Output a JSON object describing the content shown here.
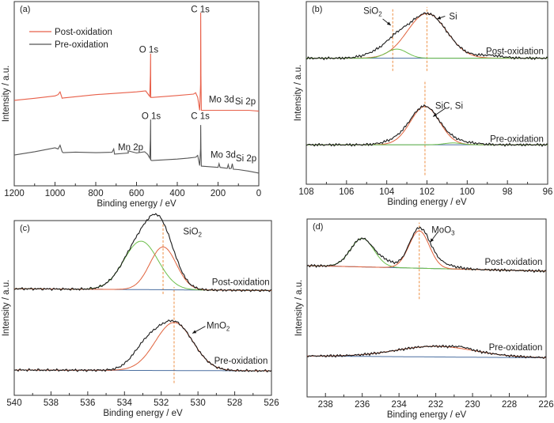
{
  "colors": {
    "frame": "#333333",
    "envelope": "#1a1a1a",
    "fit_red": "#e0623c",
    "fit_green": "#6dbf4b",
    "background": "#4a6fa0",
    "dashed": "#f0a060",
    "survey_post": "#e8604a",
    "survey_pre": "#555555"
  },
  "chart_data": [
    {
      "panel_label": "(a)",
      "type": "line",
      "xlabel": "Binding energy / eV",
      "ylabel": "Intensity / a.u.",
      "xlim": [
        1200,
        0
      ],
      "ylim": [
        0,
        100
      ],
      "xticks": [
        1200,
        1000,
        800,
        600,
        400,
        200,
        0
      ],
      "minor_step": 100,
      "legend": {
        "placement": "top-left",
        "entries": [
          {
            "label": "Post-oxidation",
            "color": "#e8604a"
          },
          {
            "label": "Pre-oxidation",
            "color": "#555555"
          }
        ]
      },
      "series": [
        {
          "name": "Post-oxidation",
          "color": "#e8604a",
          "points": [
            [
              1200,
              46.4
            ],
            [
              1100,
              47.5
            ],
            [
              1000,
              48.8
            ],
            [
              985,
              49.5
            ],
            [
              975,
              51
            ],
            [
              965,
              47.5
            ],
            [
              960,
              47.7
            ],
            [
              800,
              49.5
            ],
            [
              600,
              51
            ],
            [
              555,
              51.5
            ],
            [
              545,
              50
            ],
            [
              535,
              48.5
            ],
            [
              532,
              60
            ],
            [
              531,
              71.7
            ],
            [
              530,
              48
            ],
            [
              520,
              48
            ],
            [
              400,
              49
            ],
            [
              320,
              49.8
            ],
            [
              310,
              50.5
            ],
            [
              300,
              48
            ],
            [
              290,
              41
            ],
            [
              286,
              55
            ],
            [
              285,
              94
            ],
            [
              284,
              60
            ],
            [
              282,
              41
            ],
            [
              200,
              41
            ],
            [
              100,
              41
            ],
            [
              50,
              41
            ],
            [
              0,
              40.5
            ]
          ]
        },
        {
          "name": "Pre-oxidation",
          "color": "#555555",
          "points": [
            [
              1200,
              16.7
            ],
            [
              1100,
              18.5
            ],
            [
              1000,
              20.6
            ],
            [
              985,
              20
            ],
            [
              975,
              22
            ],
            [
              965,
              18.5
            ],
            [
              960,
              18
            ],
            [
              900,
              18.3
            ],
            [
              800,
              18
            ],
            [
              720,
              18.2
            ],
            [
              712,
              20
            ],
            [
              708,
              17.2
            ],
            [
              640,
              17.8
            ],
            [
              642,
              19
            ],
            [
              600,
              17.8
            ],
            [
              560,
              18.5
            ],
            [
              545,
              17
            ],
            [
              535,
              15
            ],
            [
              532,
              25
            ],
            [
              531,
              36
            ],
            [
              530,
              14
            ],
            [
              525,
              13.7
            ],
            [
              400,
              14.5
            ],
            [
              350,
              15
            ],
            [
              310,
              15.5
            ],
            [
              300,
              16.5
            ],
            [
              290,
              11
            ],
            [
              286,
              20
            ],
            [
              285,
              33
            ],
            [
              284,
              20
            ],
            [
              282,
              10.7
            ],
            [
              200,
              10
            ],
            [
              195,
              12
            ],
            [
              190,
              10
            ],
            [
              155,
              9.5
            ],
            [
              150,
              11.5
            ],
            [
              145,
              9.3
            ],
            [
              135,
              9.5
            ],
            [
              130,
              12
            ],
            [
              125,
              9
            ],
            [
              100,
              8.8
            ],
            [
              50,
              8
            ],
            [
              0,
              6.9
            ]
          ]
        }
      ],
      "annotations": [
        {
          "text": "C 1s",
          "x": 287,
          "y": 96
        },
        {
          "text": "O 1s",
          "x": 540,
          "y": 74
        },
        {
          "text": "Mo 3d",
          "x": 183,
          "y": 47
        },
        {
          "text": "Si 2p",
          "x": 66,
          "y": 46
        },
        {
          "text": "O 1s",
          "x": 528,
          "y": 38
        },
        {
          "text": "C 1s",
          "x": 287,
          "y": 38
        },
        {
          "text": "Mn 2p",
          "x": 629,
          "y": 21
        },
        {
          "text": "Mo 3d",
          "x": 175,
          "y": 17
        },
        {
          "text": "Si 2p",
          "x": 62,
          "y": 15
        }
      ]
    },
    {
      "panel_label": "(b)",
      "type": "line",
      "xlabel": "Binding energy / eV",
      "ylabel": "Intensity / a.u.",
      "xlim": [
        108,
        96
      ],
      "ylim": [
        0,
        100
      ],
      "xticks": [
        108,
        106,
        104,
        102,
        100,
        98,
        96
      ],
      "minor_step": 1,
      "spectra": [
        {
          "label": "Post-oxidation",
          "baseline": [
            69,
            69
          ],
          "components": [
            {
              "center": 102.0,
              "height": 24.5,
              "fwhm": 2.3,
              "color": "#e0623c"
            },
            {
              "center": 103.5,
              "height": 5,
              "fwhm": 1.2,
              "color": "#6dbf4b"
            }
          ],
          "extra": [
            {
              "center": 104.3,
              "height": 3.5,
              "fwhm": 1.6
            },
            {
              "center": 98.9,
              "height": 1.5,
              "fwhm": 1.5
            }
          ]
        },
        {
          "label": "Pre-oxidation",
          "baseline": [
            21.6,
            21.6
          ],
          "components": [
            {
              "center": 102.1,
              "height": 21,
              "fwhm": 1.7,
              "color": "#e0623c"
            },
            {
              "center": 100.7,
              "height": 1,
              "fwhm": 1,
              "color": "#6dbf4b"
            }
          ],
          "extra": [
            {
              "center": 103.5,
              "height": 2,
              "fwhm": 1.5
            },
            {
              "center": 100,
              "height": 1,
              "fwhm": 1.5
            }
          ]
        }
      ],
      "spectrum_labels": [
        {
          "text": "Post-oxidation",
          "x": 96.2,
          "y": 73
        },
        {
          "text": "Pre-oxidation",
          "x": 96.2,
          "y": 25
        }
      ],
      "dashed_lines": [
        {
          "x": 103.7,
          "y": [
            62,
            96
          ]
        },
        {
          "x": 102.0,
          "y": [
            62,
            97
          ]
        },
        {
          "x": 102.1,
          "y": [
            5,
            57
          ]
        }
      ],
      "annotations": [
        {
          "text": "SiO",
          "sub": "2",
          "x": 104.7,
          "y": 95,
          "arrow": [
            [
              104.2,
              90.5
            ],
            [
              103.8,
              87
            ]
          ]
        },
        {
          "text": "Si",
          "x": 100.7,
          "y": 92,
          "arrow": [
            [
              101.1,
              92
            ],
            [
              101.5,
              90.5
            ]
          ]
        },
        {
          "text": "SiC, Si",
          "x": 100.9,
          "y": 43,
          "arrow": [
            [
              101.1,
              41.5
            ],
            [
              101.7,
              37
            ]
          ]
        }
      ]
    },
    {
      "panel_label": "(c)",
      "type": "line",
      "xlabel": "Binding energy / eV",
      "ylabel": "Intensity / a.u.",
      "xlim": [
        540,
        526
      ],
      "ylim": [
        0,
        100
      ],
      "xticks": [
        540,
        538,
        536,
        534,
        532,
        530,
        528,
        526
      ],
      "minor_step": 1,
      "spectra": [
        {
          "label": "Post-oxidation",
          "baseline": [
            61,
            60
          ],
          "components": [
            {
              "center": 533.1,
              "height": 27.7,
              "fwhm": 2.2,
              "color": "#6dbf4b"
            },
            {
              "center": 531.9,
              "height": 24.5,
              "fwhm": 1.7,
              "color": "#e0623c"
            }
          ],
          "extra": [
            {
              "center": 532.3,
              "height": 3,
              "fwhm": 1.2
            }
          ]
        },
        {
          "label": "Pre-oxidation",
          "baseline": [
            14.5,
            14
          ],
          "components": [
            {
              "center": 531.3,
              "height": 27.5,
              "fwhm": 2.4,
              "color": "#e0623c"
            }
          ],
          "extra": [
            {
              "center": 532.9,
              "height": 10,
              "fwhm": 1.7
            }
          ]
        }
      ],
      "spectrum_labels": [
        {
          "text": "Post-oxidation",
          "x": 526.1,
          "y": 65
        },
        {
          "text": "Pre-oxidation",
          "x": 526.2,
          "y": 20
        }
      ],
      "dashed_lines": [
        {
          "x": 531.9,
          "y": [
            58,
            99
          ]
        },
        {
          "x": 531.3,
          "y": [
            7,
            62
          ]
        }
      ],
      "annotations": [
        {
          "text": "SiO",
          "sub": "2",
          "x": 530.3,
          "y": 94
        },
        {
          "text": "MnO",
          "sub": "2",
          "x": 528.9,
          "y": 40,
          "arrow": [
            [
              529.6,
              39.5
            ],
            [
              530.3,
              35.5
            ]
          ]
        }
      ]
    },
    {
      "panel_label": "(d)",
      "type": "line",
      "xlabel": "Binding energy / eV",
      "ylabel": "Intensity / a.u.",
      "xlim": [
        239,
        226
      ],
      "ylim": [
        0,
        100
      ],
      "xticks": [
        238,
        236,
        234,
        232,
        230,
        228,
        226
      ],
      "minor_step": 1,
      "spectra": [
        {
          "label": "Post-oxidation",
          "baseline": [
            73.8,
            70.7
          ],
          "components": [
            {
              "center": 236.0,
              "height": 16,
              "fwhm": 1.5,
              "color": "#6dbf4b"
            },
            {
              "center": 232.9,
              "height": 21,
              "fwhm": 1.3,
              "color": "#e0623c"
            }
          ],
          "extra": [
            {
              "center": 232.0,
              "height": 3,
              "fwhm": 2
            },
            {
              "center": 234.7,
              "height": 2.5,
              "fwhm": 1
            }
          ]
        },
        {
          "label": "Pre-oxidation",
          "baseline": [
            23,
            22
          ],
          "components": [
            {
              "center": 232.0,
              "height": 6,
              "fwhm": 5,
              "color": "#e0623c"
            }
          ],
          "extra": [
            {
              "center": 230.6,
              "height": 1,
              "fwhm": 1
            }
          ]
        }
      ],
      "spectrum_labels": [
        {
          "text": "Post-oxidation",
          "x": 226.2,
          "y": 76
        },
        {
          "text": "Pre-oxidation",
          "x": 226.2,
          "y": 28
        }
      ],
      "dashed_lines": [
        {
          "x": 232.9,
          "y": [
            55,
            98
          ]
        }
      ],
      "annotations": [
        {
          "text": "MoO",
          "sub": "3",
          "x": 231.6,
          "y": 94,
          "arrow": [
            [
              231.9,
              92.5
            ],
            [
              232.3,
              87
            ]
          ]
        }
      ]
    }
  ]
}
